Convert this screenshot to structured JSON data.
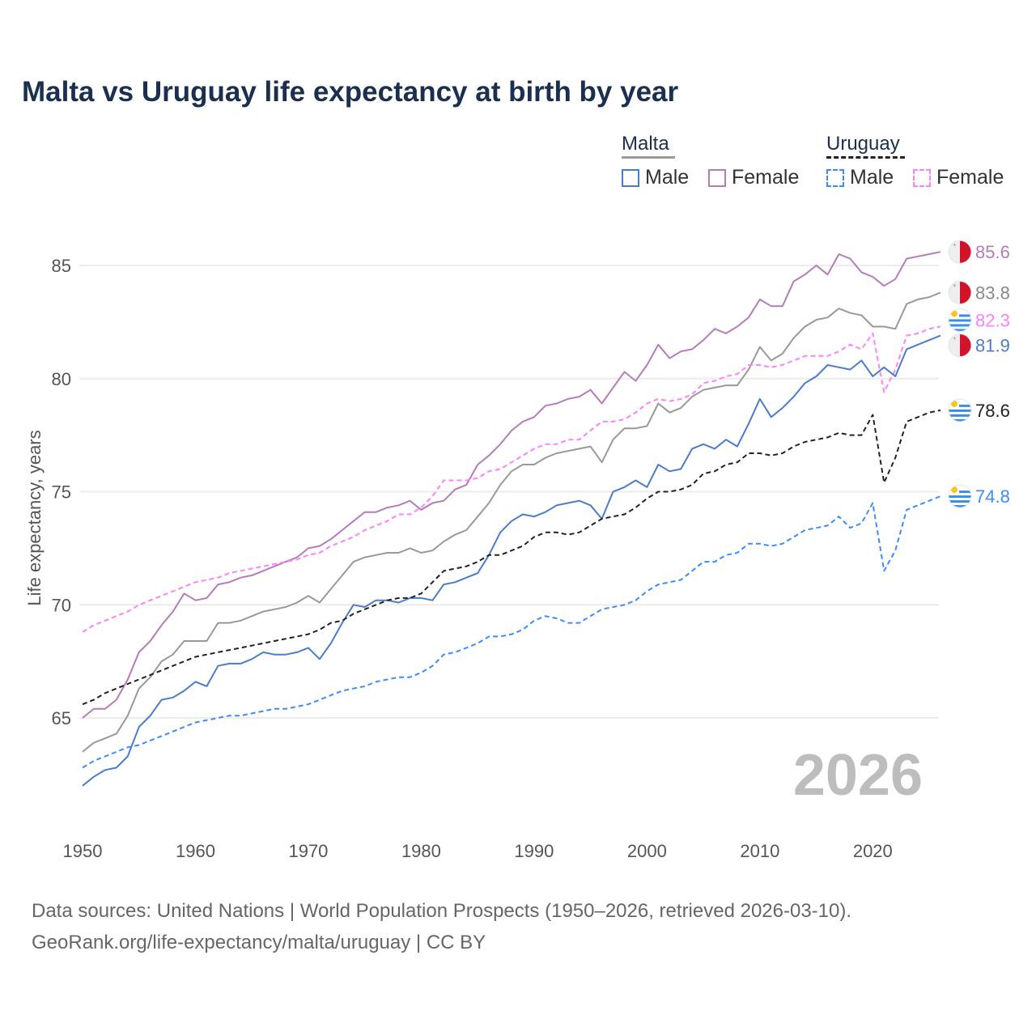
{
  "title": "Malta vs Uruguay life expectancy at birth by year",
  "legend": {
    "groups": [
      {
        "name": "Malta",
        "items": [
          {
            "label": "Male",
            "color": "#4a7cc8",
            "dashed": false
          },
          {
            "label": "Female",
            "color": "#b57cb9",
            "dashed": false
          }
        ]
      },
      {
        "name": "Uruguay",
        "items": [
          {
            "label": "Male",
            "color": "#3d8bff",
            "dashed": true
          },
          {
            "label": "Female",
            "color": "#ff80ff",
            "dashed": true
          }
        ]
      }
    ]
  },
  "watermark_year": "2026",
  "footer": {
    "line1": "Data sources: United Nations | World Population Prospects (1950–2026, retrieved 2026-03-10).",
    "line2": "GeoRank.org/life-expectancy/malta/uruguay | CC BY"
  },
  "chart_data": {
    "type": "line",
    "title": "Malta vs Uruguay life expectancy at birth by year",
    "xlabel": "",
    "ylabel": "Life expectancy, years",
    "x_start": 1950,
    "x_end": 2026,
    "xlim": [
      1950,
      2026
    ],
    "ylim": [
      61.5,
      87
    ],
    "xticks": [
      1950,
      1960,
      1970,
      1980,
      1990,
      2000,
      2010,
      2020
    ],
    "yticks": [
      65,
      70,
      75,
      80,
      85
    ],
    "grid": true,
    "series": [
      {
        "name": "Malta Female",
        "country": "malta",
        "color": "#b57cb9",
        "dashed": false,
        "end_label": "85.6",
        "values": [
          65.0,
          65.4,
          65.4,
          65.8,
          66.7,
          67.9,
          68.4,
          69.1,
          69.7,
          70.5,
          70.2,
          70.3,
          70.9,
          71.0,
          71.2,
          71.3,
          71.5,
          71.7,
          71.9,
          72.1,
          72.5,
          72.6,
          72.9,
          73.3,
          73.7,
          74.1,
          74.1,
          74.3,
          74.4,
          74.6,
          74.2,
          74.5,
          74.6,
          75.1,
          75.3,
          76.2,
          76.6,
          77.1,
          77.7,
          78.1,
          78.3,
          78.8,
          78.9,
          79.1,
          79.2,
          79.5,
          78.9,
          79.6,
          80.3,
          79.9,
          80.6,
          81.5,
          80.9,
          81.2,
          81.3,
          81.7,
          82.2,
          82.0,
          82.3,
          82.7,
          83.5,
          83.2,
          83.2,
          84.3,
          84.6,
          85.0,
          84.6,
          85.5,
          85.3,
          84.7,
          84.5,
          84.1,
          84.4,
          85.3,
          85.4,
          85.5,
          85.6
        ]
      },
      {
        "name": "Malta",
        "country": "malta",
        "color": "#999999",
        "dashed": false,
        "end_label": "83.8",
        "values": [
          63.5,
          63.9,
          64.1,
          64.3,
          65.1,
          66.3,
          66.8,
          67.5,
          67.8,
          68.4,
          68.4,
          68.4,
          69.2,
          69.2,
          69.3,
          69.5,
          69.7,
          69.8,
          69.9,
          70.1,
          70.4,
          70.1,
          70.7,
          71.3,
          71.9,
          72.1,
          72.2,
          72.3,
          72.3,
          72.5,
          72.3,
          72.4,
          72.8,
          73.1,
          73.3,
          73.9,
          74.5,
          75.3,
          75.9,
          76.2,
          76.2,
          76.5,
          76.7,
          76.8,
          76.9,
          77.0,
          76.3,
          77.3,
          77.8,
          77.8,
          77.9,
          78.9,
          78.5,
          78.7,
          79.2,
          79.5,
          79.6,
          79.7,
          79.7,
          80.4,
          81.4,
          80.8,
          81.1,
          81.8,
          82.3,
          82.6,
          82.7,
          83.1,
          82.9,
          82.8,
          82.3,
          82.3,
          82.2,
          83.3,
          83.5,
          83.6,
          83.8
        ]
      },
      {
        "name": "Uruguay Female",
        "country": "uruguay",
        "color": "#ff80ff",
        "dashed": true,
        "end_label": "82.3",
        "values": [
          68.8,
          69.1,
          69.3,
          69.5,
          69.7,
          70.0,
          70.2,
          70.4,
          70.6,
          70.8,
          71.0,
          71.1,
          71.2,
          71.4,
          71.5,
          71.6,
          71.7,
          71.8,
          71.9,
          72.0,
          72.2,
          72.3,
          72.6,
          72.8,
          73.0,
          73.3,
          73.5,
          73.7,
          74.0,
          74.0,
          74.3,
          74.8,
          75.5,
          75.5,
          75.5,
          75.6,
          75.9,
          76.0,
          76.3,
          76.6,
          76.9,
          77.1,
          77.1,
          77.3,
          77.3,
          77.7,
          78.1,
          78.1,
          78.2,
          78.5,
          78.9,
          79.1,
          79.0,
          79.1,
          79.3,
          79.8,
          79.9,
          80.1,
          80.2,
          80.6,
          80.6,
          80.5,
          80.6,
          80.8,
          81.0,
          81.0,
          81.0,
          81.2,
          81.5,
          81.3,
          82.0,
          79.4,
          80.4,
          81.9,
          82.0,
          82.2,
          82.3
        ]
      },
      {
        "name": "Malta Male",
        "country": "malta",
        "color": "#4a7cc8",
        "dashed": false,
        "end_label": "81.9",
        "values": [
          62.0,
          62.4,
          62.7,
          62.8,
          63.3,
          64.6,
          65.1,
          65.8,
          65.9,
          66.2,
          66.6,
          66.4,
          67.3,
          67.4,
          67.4,
          67.6,
          67.9,
          67.8,
          67.8,
          67.9,
          68.1,
          67.6,
          68.3,
          69.2,
          70.0,
          69.9,
          70.2,
          70.2,
          70.1,
          70.3,
          70.3,
          70.2,
          70.9,
          71.0,
          71.2,
          71.4,
          72.2,
          73.2,
          73.7,
          74.0,
          73.9,
          74.1,
          74.4,
          74.5,
          74.6,
          74.4,
          73.8,
          75.0,
          75.2,
          75.5,
          75.2,
          76.2,
          75.9,
          76.0,
          76.9,
          77.1,
          76.9,
          77.3,
          77.0,
          78.0,
          79.1,
          78.3,
          78.7,
          79.2,
          79.8,
          80.1,
          80.6,
          80.5,
          80.4,
          80.8,
          80.1,
          80.5,
          80.1,
          81.3,
          81.5,
          81.7,
          81.9
        ]
      },
      {
        "name": "Uruguay",
        "country": "uruguay",
        "color": "#222222",
        "dashed": true,
        "end_label": "78.6",
        "values": [
          65.6,
          65.8,
          66.1,
          66.3,
          66.5,
          66.7,
          66.9,
          67.1,
          67.3,
          67.5,
          67.7,
          67.8,
          67.9,
          68.0,
          68.1,
          68.2,
          68.3,
          68.4,
          68.5,
          68.6,
          68.7,
          68.9,
          69.2,
          69.3,
          69.6,
          69.8,
          70.0,
          70.2,
          70.3,
          70.3,
          70.5,
          71.0,
          71.5,
          71.6,
          71.7,
          71.9,
          72.2,
          72.2,
          72.4,
          72.6,
          73.0,
          73.2,
          73.2,
          73.1,
          73.2,
          73.5,
          73.8,
          73.9,
          74.0,
          74.3,
          74.7,
          75.0,
          75.0,
          75.1,
          75.3,
          75.8,
          75.9,
          76.2,
          76.3,
          76.7,
          76.7,
          76.6,
          76.7,
          77.0,
          77.2,
          77.3,
          77.4,
          77.6,
          77.5,
          77.5,
          78.4,
          75.4,
          76.5,
          78.1,
          78.3,
          78.5,
          78.6
        ]
      },
      {
        "name": "Uruguay Male",
        "country": "uruguay",
        "color": "#3d8bff",
        "dashed": true,
        "end_label": "74.8",
        "values": [
          62.8,
          63.1,
          63.3,
          63.5,
          63.7,
          63.8,
          64.0,
          64.2,
          64.4,
          64.6,
          64.8,
          64.9,
          65.0,
          65.1,
          65.1,
          65.2,
          65.3,
          65.4,
          65.4,
          65.5,
          65.6,
          65.8,
          66.0,
          66.2,
          66.3,
          66.4,
          66.6,
          66.7,
          66.8,
          66.8,
          67.0,
          67.3,
          67.8,
          67.9,
          68.1,
          68.3,
          68.6,
          68.6,
          68.7,
          68.9,
          69.3,
          69.5,
          69.4,
          69.2,
          69.2,
          69.5,
          69.8,
          69.9,
          70.0,
          70.2,
          70.6,
          70.9,
          71.0,
          71.1,
          71.5,
          71.9,
          71.9,
          72.2,
          72.3,
          72.7,
          72.7,
          72.6,
          72.7,
          73.0,
          73.3,
          73.4,
          73.5,
          73.9,
          73.4,
          73.6,
          74.5,
          71.5,
          72.4,
          74.2,
          74.4,
          74.6,
          74.8
        ]
      }
    ]
  }
}
